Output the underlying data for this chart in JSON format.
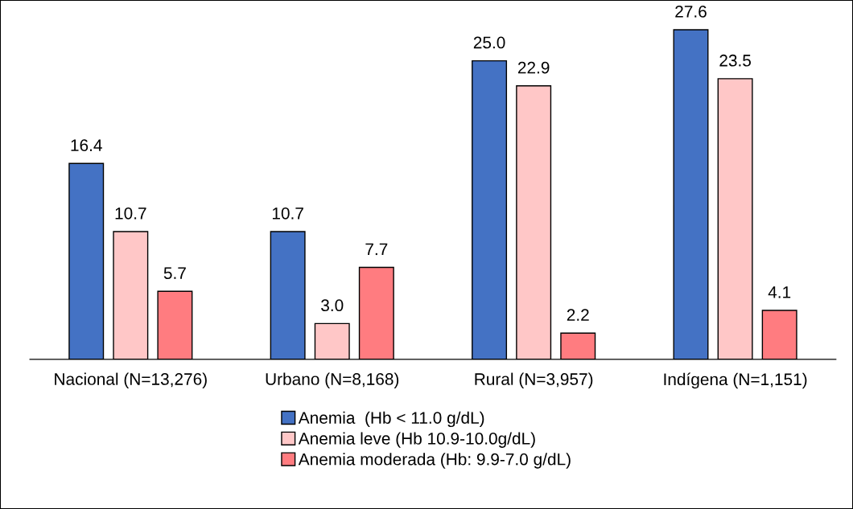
{
  "chart_data": {
    "type": "bar",
    "categories": [
      "Nacional (N=13,276)",
      "Urbano (N=8,168)",
      "Rural (N=3,957)",
      "Indígena (N=1,151)"
    ],
    "series": [
      {
        "name": "Anemia  (Hb < 11.0 g/dL)",
        "color": "#4472c4",
        "values": [
          16.4,
          10.7,
          25.0,
          27.6
        ],
        "value_labels": [
          "16.4",
          "10.7",
          "25.0",
          "27.6"
        ]
      },
      {
        "name": "Anemia leve (Hb 10.9-10.0g/dL)",
        "color": "#ffc7c7",
        "values": [
          10.7,
          3.0,
          22.9,
          23.5
        ],
        "value_labels": [
          "10.7",
          "3.0",
          "22.9",
          "23.5"
        ]
      },
      {
        "name": "Anemia moderada (Hb: 9.9-7.0 g/dL)",
        "color": "#ff7c80",
        "values": [
          5.7,
          7.7,
          2.2,
          4.1
        ],
        "value_labels": [
          "5.7",
          "7.7",
          "2.2",
          "4.1"
        ]
      }
    ],
    "legend": "bottom",
    "grid": false,
    "tick_labels": "x"
  }
}
